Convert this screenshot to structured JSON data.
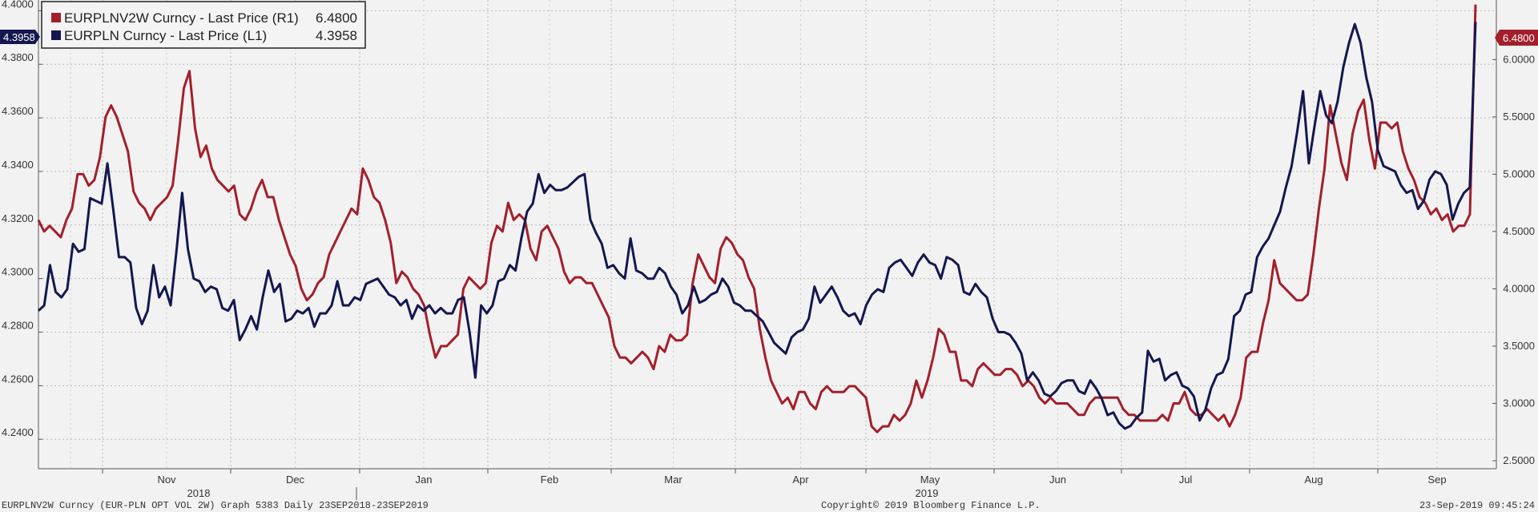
{
  "chart_data": {
    "type": "line",
    "grid": true,
    "legend_placement": "top-left",
    "legend": [
      {
        "name": "EURPLNV2W Curncy - Last Price (R1)",
        "value": "6.4800",
        "color": "#a31f2b",
        "axis": "right"
      },
      {
        "name": "EURPLN Curncy - Last Price (L1)",
        "value": "4.3958",
        "color": "#14174f",
        "axis": "left"
      }
    ],
    "left_axis": {
      "ylim": [
        4.229,
        4.404
      ],
      "ticks": [
        "4.2400",
        "4.2600",
        "4.2800",
        "4.3000",
        "4.3200",
        "4.3400",
        "4.3600",
        "4.3800",
        "4.4000"
      ]
    },
    "right_axis": {
      "ylim": [
        2.43,
        6.52
      ],
      "ticks": [
        "2.5000",
        "3.0000",
        "3.5000",
        "4.0000",
        "4.5000",
        "5.0000",
        "5.5000",
        "6.0000"
      ]
    },
    "last_value_tags": {
      "left": "4.3958",
      "right": "6.4800"
    },
    "x_axis": {
      "months": [
        "Nov",
        "Dec",
        "Jan",
        "Feb",
        "Mar",
        "Apr",
        "May",
        "Jun",
        "Jul",
        "Aug",
        "Sep"
      ],
      "years": [
        "2018",
        "2019"
      ]
    },
    "series": [
      {
        "name": "EURPLNV2W Curncy - Last Price (R1)",
        "color": "#a31f2b",
        "axis": "right",
        "values": [
          4.6,
          4.5,
          4.55,
          4.5,
          4.45,
          4.6,
          4.7,
          5,
          5,
          4.9,
          4.95,
          5.15,
          5.5,
          5.6,
          5.5,
          5.35,
          5.2,
          4.85,
          4.75,
          4.7,
          4.6,
          4.7,
          4.75,
          4.8,
          4.9,
          5.3,
          5.75,
          5.9,
          5.4,
          5.15,
          5.25,
          5.05,
          4.95,
          4.9,
          4.85,
          4.9,
          4.65,
          4.6,
          4.7,
          4.85,
          4.95,
          4.8,
          4.8,
          4.6,
          4.45,
          4.3,
          4.2,
          4,
          3.9,
          3.95,
          4.05,
          4.1,
          4.3,
          4.4,
          4.5,
          4.6,
          4.7,
          4.65,
          5.05,
          4.95,
          4.8,
          4.75,
          4.6,
          4.4,
          4.05,
          4.15,
          4.1,
          4,
          3.95,
          3.85,
          3.6,
          3.4,
          3.5,
          3.5,
          3.55,
          3.6,
          4,
          4.1,
          4.05,
          4,
          4.05,
          4.4,
          4.55,
          4.5,
          4.75,
          4.6,
          4.65,
          4.6,
          4.35,
          4.25,
          4.5,
          4.55,
          4.45,
          4.35,
          4.15,
          4.05,
          4.1,
          4.1,
          4.05,
          4.05,
          3.95,
          3.85,
          3.75,
          3.5,
          3.4,
          3.4,
          3.35,
          3.4,
          3.45,
          3.4,
          3.3,
          3.5,
          3.45,
          3.6,
          3.55,
          3.55,
          3.6,
          4.05,
          4.3,
          4.2,
          4.1,
          4.05,
          4.35,
          4.45,
          4.4,
          4.3,
          4.25,
          4.1,
          4,
          3.65,
          3.4,
          3.2,
          3.1,
          3,
          3.05,
          2.95,
          3.1,
          3.1,
          3,
          2.95,
          3.1,
          3.15,
          3.1,
          3.1,
          3.1,
          3.15,
          3.15,
          3.1,
          3.05,
          2.8,
          2.75,
          2.8,
          2.8,
          2.9,
          2.85,
          2.9,
          3,
          3.2,
          3.05,
          3.2,
          3.4,
          3.65,
          3.6,
          3.45,
          3.45,
          3.2,
          3.2,
          3.15,
          3.3,
          3.35,
          3.3,
          3.25,
          3.25,
          3.3,
          3.3,
          3.25,
          3.15,
          3.2,
          3.15,
          3.05,
          3,
          3.05,
          3,
          3,
          3,
          2.95,
          2.9,
          2.9,
          3,
          3.05,
          3.05,
          3.05,
          3.05,
          3.05,
          2.95,
          2.9,
          2.9,
          2.85,
          2.85,
          2.85,
          2.85,
          2.9,
          2.85,
          3,
          3,
          3.1,
          2.95,
          2.9,
          2.9,
          2.95,
          2.9,
          2.85,
          2.9,
          2.8,
          2.9,
          3.05,
          3.4,
          3.45,
          3.45,
          3.7,
          3.9,
          4.25,
          4.05,
          4,
          3.95,
          3.9,
          3.9,
          3.95,
          4.3,
          4.7,
          5.05,
          5.6,
          5.35,
          5.1,
          4.95,
          5.35,
          5.55,
          5.65,
          5.3,
          5.05,
          5.45,
          5.45,
          5.4,
          5.45,
          5.2,
          5.05,
          4.95,
          4.8,
          4.75,
          4.65,
          4.7,
          4.6,
          4.65,
          4.5,
          4.55,
          4.55,
          4.65,
          6.48
        ]
      },
      {
        "name": "EURPLN Curncy - Last Price (L1)",
        "color": "#14174f",
        "axis": "left",
        "values": [
          4.288,
          4.29,
          4.305,
          4.295,
          4.293,
          4.296,
          4.313,
          4.31,
          4.311,
          4.33,
          4.329,
          4.328,
          4.343,
          4.326,
          4.308,
          4.308,
          4.306,
          4.289,
          4.283,
          4.288,
          4.305,
          4.293,
          4.297,
          4.29,
          4.31,
          4.332,
          4.311,
          4.3,
          4.299,
          4.295,
          4.297,
          4.296,
          4.289,
          4.288,
          4.292,
          4.277,
          4.281,
          4.286,
          4.281,
          4.293,
          4.303,
          4.295,
          4.298,
          4.284,
          4.285,
          4.288,
          4.287,
          4.289,
          4.282,
          4.287,
          4.287,
          4.29,
          4.299,
          4.29,
          4.29,
          4.293,
          4.292,
          4.298,
          4.299,
          4.3,
          4.297,
          4.294,
          4.293,
          4.29,
          4.292,
          4.285,
          4.29,
          4.288,
          4.29,
          4.287,
          4.289,
          4.287,
          4.287,
          4.292,
          4.293,
          4.28,
          4.263,
          4.29,
          4.287,
          4.29,
          4.299,
          4.3,
          4.305,
          4.303,
          4.315,
          4.325,
          4.328,
          4.339,
          4.332,
          4.335,
          4.333,
          4.333,
          4.334,
          4.336,
          4.338,
          4.339,
          4.322,
          4.317,
          4.313,
          4.304,
          4.305,
          4.302,
          4.3,
          4.315,
          4.303,
          4.302,
          4.3,
          4.3,
          4.304,
          4.302,
          4.297,
          4.294,
          4.287,
          4.29,
          4.297,
          4.291,
          4.292,
          4.294,
          4.295,
          4.3,
          4.297,
          4.291,
          4.29,
          4.288,
          4.288,
          4.286,
          4.284,
          4.28,
          4.276,
          4.274,
          4.272,
          4.278,
          4.28,
          4.281,
          4.285,
          4.297,
          4.291,
          4.294,
          4.297,
          4.293,
          4.288,
          4.286,
          4.287,
          4.283,
          4.29,
          4.294,
          4.296,
          4.295,
          4.304,
          4.306,
          4.307,
          4.304,
          4.301,
          4.306,
          4.309,
          4.306,
          4.305,
          4.3,
          4.308,
          4.307,
          4.305,
          4.295,
          4.294,
          4.298,
          4.295,
          4.293,
          4.285,
          4.28,
          4.28,
          4.279,
          4.276,
          4.272,
          4.262,
          4.265,
          4.262,
          4.257,
          4.256,
          4.258,
          4.261,
          4.262,
          4.262,
          4.258,
          4.257,
          4.262,
          4.259,
          4.255,
          4.249,
          4.25,
          4.246,
          4.244,
          4.245,
          4.248,
          4.25,
          4.273,
          4.269,
          4.27,
          4.262,
          4.264,
          4.265,
          4.26,
          4.259,
          4.256,
          4.247,
          4.251,
          4.259,
          4.264,
          4.265,
          4.27,
          4.286,
          4.288,
          4.294,
          4.295,
          4.308,
          4.312,
          4.315,
          4.32,
          4.325,
          4.334,
          4.342,
          4.355,
          4.37,
          4.343,
          4.357,
          4.37,
          4.361,
          4.358,
          4.366,
          4.379,
          4.388,
          4.395,
          4.388,
          4.375,
          4.366,
          4.348,
          4.342,
          4.341,
          4.34,
          4.335,
          4.332,
          4.333,
          4.326,
          4.329,
          4.337,
          4.34,
          4.339,
          4.335,
          4.322,
          4.328,
          4.332,
          4.334,
          4.3958
        ]
      }
    ]
  },
  "footer": {
    "left": "EURPLNV2W Curncy (EUR-PLN OPT VOL 2W) Graph 5383  Daily 23SEP2018-23SEP2019",
    "center": "Copyright© 2019 Bloomberg Finance L.P.",
    "right": "23-Sep-2019 09:45:24"
  }
}
